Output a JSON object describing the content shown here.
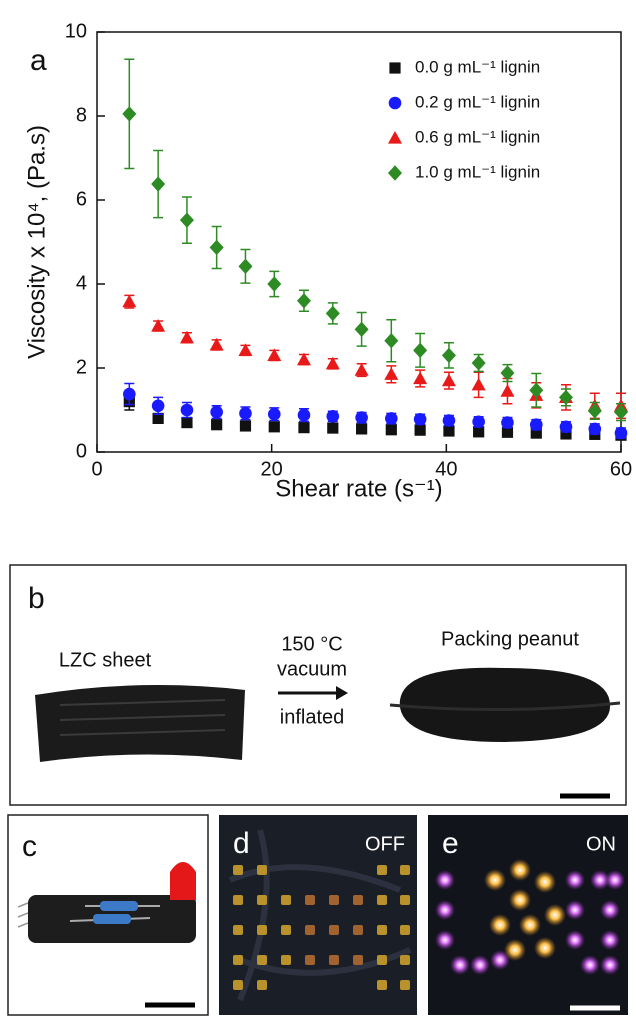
{
  "chart_data": {
    "type": "scatter",
    "panel_label": "a",
    "x_label": "Shear rate (s⁻¹)",
    "y_label": "Viscosity x 10⁴, (Pa.s)",
    "x": [
      3.7,
      7,
      10.3,
      13.7,
      17,
      20.3,
      23.7,
      27,
      30.3,
      33.7,
      37,
      40.3,
      43.7,
      47,
      50.3,
      53.7,
      57,
      60
    ],
    "xlim": [
      0,
      60
    ],
    "xticks": [
      0,
      20,
      40,
      60
    ],
    "ylim": [
      0,
      10
    ],
    "yticks": [
      0,
      2,
      4,
      6,
      8,
      10
    ],
    "grid": false,
    "legend": "upper right",
    "series": [
      {
        "name": "0.0 g mL⁻¹ lignin",
        "color": "#111111",
        "marker": "square",
        "values": [
          1.2,
          0.8,
          0.7,
          0.65,
          0.62,
          0.6,
          0.58,
          0.57,
          0.55,
          0.53,
          0.52,
          0.5,
          0.48,
          0.47,
          0.45,
          0.43,
          0.42,
          0.4
        ],
        "errors": [
          0.2,
          0.1,
          0.1,
          0.08,
          0.08,
          0.08,
          0.08,
          0.08,
          0.08,
          0.08,
          0.08,
          0.08,
          0.08,
          0.08,
          0.08,
          0.08,
          0.08,
          0.08
        ]
      },
      {
        "name": "0.2 g mL⁻¹ lignin",
        "color": "#1a1aff",
        "marker": "circle",
        "values": [
          1.38,
          1.1,
          1.0,
          0.95,
          0.92,
          0.9,
          0.88,
          0.85,
          0.82,
          0.8,
          0.78,
          0.75,
          0.72,
          0.7,
          0.65,
          0.6,
          0.55,
          0.45
        ],
        "errors": [
          0.25,
          0.2,
          0.18,
          0.15,
          0.15,
          0.15,
          0.15,
          0.12,
          0.12,
          0.12,
          0.12,
          0.12,
          0.12,
          0.12,
          0.12,
          0.12,
          0.12,
          0.12
        ]
      },
      {
        "name": "0.6 g mL⁻¹ lignin",
        "color": "#e81919",
        "marker": "triangle",
        "values": [
          3.58,
          3.0,
          2.72,
          2.55,
          2.42,
          2.3,
          2.2,
          2.1,
          1.95,
          1.85,
          1.75,
          1.7,
          1.6,
          1.45,
          1.35,
          1.3,
          1.1,
          1.1
        ],
        "errors": [
          0.15,
          0.12,
          0.12,
          0.12,
          0.12,
          0.12,
          0.12,
          0.12,
          0.15,
          0.2,
          0.2,
          0.2,
          0.3,
          0.3,
          0.3,
          0.3,
          0.3,
          0.3
        ]
      },
      {
        "name": "1.0 g mL⁻¹ lignin",
        "color": "#2e8b24",
        "marker": "diamond",
        "values": [
          8.05,
          6.38,
          5.52,
          4.87,
          4.42,
          4.0,
          3.6,
          3.3,
          2.92,
          2.65,
          2.42,
          2.3,
          2.12,
          1.88,
          1.47,
          1.3,
          0.98,
          0.95
        ],
        "errors": [
          1.3,
          0.8,
          0.55,
          0.5,
          0.4,
          0.3,
          0.25,
          0.25,
          0.4,
          0.5,
          0.4,
          0.3,
          0.2,
          0.2,
          0.4,
          0.2,
          0.2,
          0.2
        ]
      }
    ]
  },
  "panels": {
    "b": {
      "label": "b",
      "left": "LZC sheet",
      "process": [
        "150 °C",
        "vacuum",
        "inflated"
      ],
      "right": "Packing peanut"
    },
    "c": {
      "label": "c"
    },
    "d": {
      "label": "d",
      "state": "OFF"
    },
    "e": {
      "label": "e",
      "state": "ON"
    }
  }
}
